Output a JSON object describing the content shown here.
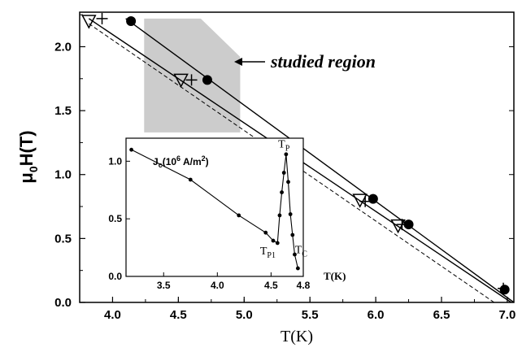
{
  "chart_data": [
    {
      "type": "scatter",
      "xlabel": "T(K)",
      "ylabel": "μ0H(T)",
      "ylabel_main": "μ",
      "ylabel_sub": "0",
      "ylabel_rest": "H(T)",
      "xlim": [
        3.75,
        7.05
      ],
      "ylim": [
        0.0,
        2.27
      ],
      "xticks": [
        "4.0",
        "4.5",
        "5.0",
        "5.5",
        "6.0",
        "6.5",
        "7.0"
      ],
      "yticks": [
        "0.0",
        "0.5",
        "1.0",
        "1.5",
        "2.0"
      ],
      "grid": false,
      "annotation": "studied region",
      "studied_region": {
        "polygon": [
          [
            4.24,
            2.22
          ],
          [
            4.67,
            2.22
          ],
          [
            4.97,
            1.92
          ],
          [
            4.97,
            1.33
          ],
          [
            4.24,
            1.33
          ]
        ]
      },
      "series": [
        {
          "marker": "filled-circle",
          "points": [
            [
              4.14,
              2.2
            ],
            [
              4.72,
              1.74
            ],
            [
              5.98,
              0.81
            ],
            [
              6.25,
              0.61
            ],
            [
              6.98,
              0.1
            ]
          ],
          "fit_line": [
            [
              4.1,
              2.22
            ],
            [
              7.05,
              0.0
            ]
          ]
        },
        {
          "marker": "open-triangle-down",
          "points": [
            [
              3.82,
              2.2
            ],
            [
              4.52,
              1.74
            ],
            [
              5.88,
              0.8
            ],
            [
              6.17,
              0.6
            ]
          ],
          "fit_line": [
            [
              3.82,
              2.22
            ],
            [
              7.03,
              0.0
            ]
          ]
        },
        {
          "marker": "plus",
          "points": [
            [
              3.92,
              2.22
            ],
            [
              4.6,
              1.74
            ],
            [
              5.92,
              0.79
            ],
            [
              6.2,
              0.61
            ],
            [
              6.97,
              0.11
            ]
          ],
          "fit_line": [
            [
              3.82,
              2.18
            ],
            [
              6.9,
              0.0
            ]
          ],
          "line_style": "dashed"
        }
      ]
    },
    {
      "type": "line",
      "xlabel": "T(K)",
      "xlim": [
        3.15,
        4.8
      ],
      "ylim": [
        0.0,
        1.2
      ],
      "xticks": [
        "3.5",
        "4.0",
        "4.5",
        "4.8"
      ],
      "yticks": [
        "0.0",
        "0.5",
        "1.0"
      ],
      "series_label": {
        "main": "J",
        "sub": "c",
        "mid": "(10",
        "sup": "6",
        "end": " A/m",
        "sup2": "2",
        "close": ")"
      },
      "x": [
        3.2,
        3.75,
        4.2,
        4.45,
        4.52,
        4.56,
        4.58,
        4.6,
        4.62,
        4.64,
        4.66,
        4.68,
        4.7,
        4.72,
        4.75
      ],
      "y": [
        1.1,
        0.84,
        0.53,
        0.38,
        0.31,
        0.29,
        0.53,
        0.73,
        0.9,
        1.06,
        0.82,
        0.54,
        0.36,
        0.19,
        0.07
      ],
      "annotations": [
        {
          "main": "T",
          "sub": "P",
          "x": 4.62,
          "y": 1.12
        },
        {
          "main": "T",
          "sub": "P1",
          "x": 4.47,
          "y": 0.19
        },
        {
          "main": "T",
          "sub": "C",
          "x": 4.78,
          "y": 0.2
        }
      ]
    }
  ]
}
